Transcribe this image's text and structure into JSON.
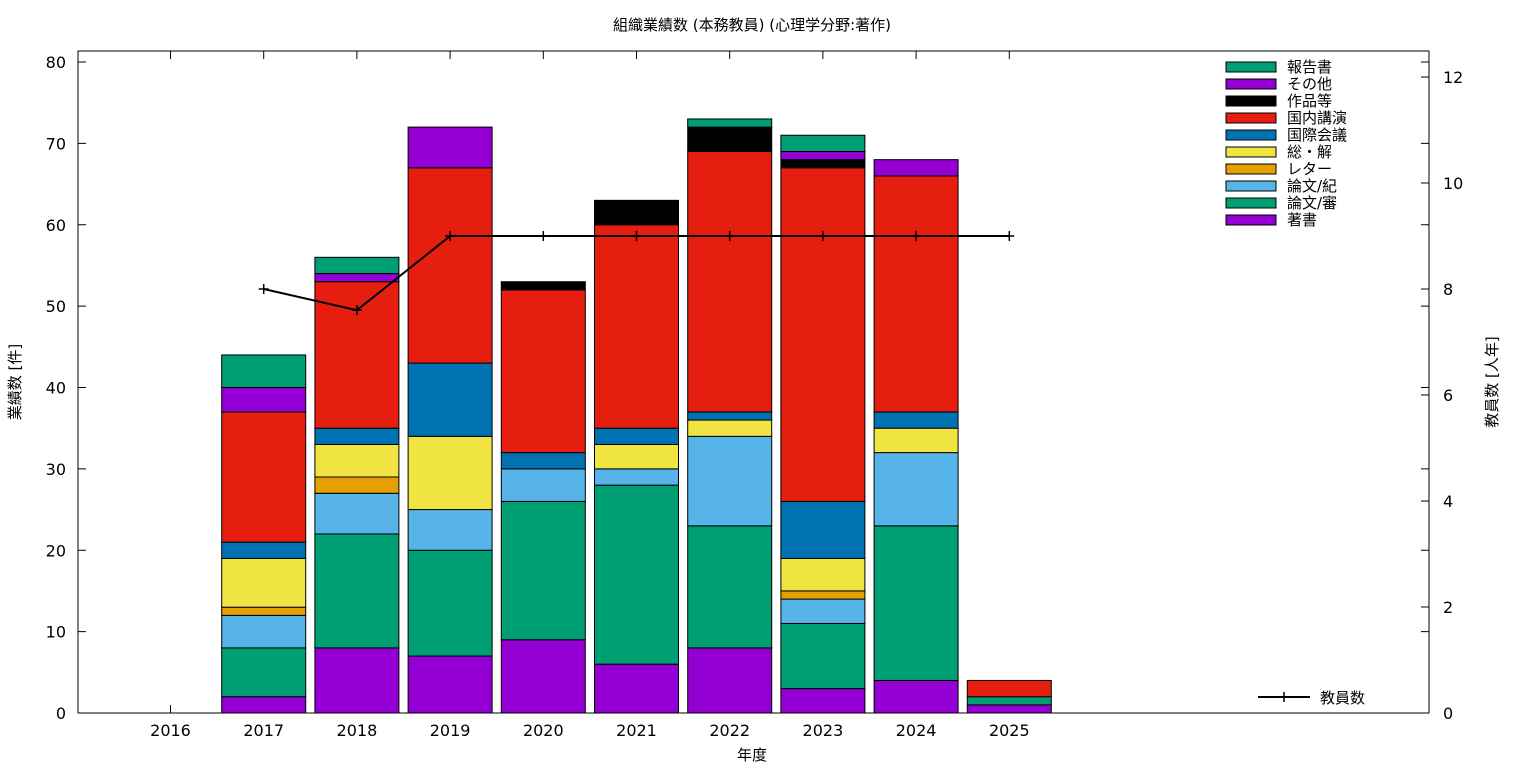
{
  "chart_data": {
    "type": "bar",
    "stacked": true,
    "title": "組織業績数 (本務教員) (心理学分野:著作)",
    "xlabel": "年度",
    "ylabel": "業績数 [件]",
    "y2label": "教員数 [人年]",
    "categories": [
      "2016",
      "2017",
      "2018",
      "2019",
      "2020",
      "2021",
      "2022",
      "2023",
      "2024",
      "2025"
    ],
    "ylim": [
      0,
      80
    ],
    "yticks": [
      0,
      10,
      20,
      30,
      40,
      50,
      60,
      70,
      80
    ],
    "y2lim": [
      0,
      12
    ],
    "y2ticks": [
      0,
      2,
      4,
      6,
      8,
      10,
      12
    ],
    "legend_position": "top-right",
    "series": [
      {
        "name": "著書",
        "color": "#9400d3",
        "values": [
          0,
          2,
          8,
          7,
          9,
          6,
          8,
          3,
          4,
          1
        ]
      },
      {
        "name": "論文/審",
        "color": "#009e73",
        "values": [
          0,
          6,
          14,
          13,
          17,
          22,
          15,
          8,
          19,
          1
        ]
      },
      {
        "name": "論文/紀",
        "color": "#56b4e9",
        "values": [
          0,
          4,
          5,
          5,
          4,
          2,
          11,
          3,
          9,
          0
        ]
      },
      {
        "name": "レター",
        "color": "#e69f00",
        "values": [
          0,
          1,
          2,
          0,
          0,
          0,
          0,
          1,
          0,
          0
        ]
      },
      {
        "name": "総・解",
        "color": "#f0e442",
        "values": [
          0,
          6,
          4,
          9,
          0,
          3,
          2,
          4,
          3,
          0
        ]
      },
      {
        "name": "国際会議",
        "color": "#0072b2",
        "values": [
          0,
          2,
          2,
          9,
          2,
          2,
          1,
          7,
          2,
          0
        ]
      },
      {
        "name": "国内講演",
        "color": "#e51e10",
        "values": [
          0,
          16,
          18,
          24,
          20,
          25,
          32,
          41,
          29,
          2
        ]
      },
      {
        "name": "作品等",
        "color": "#000000",
        "values": [
          0,
          0,
          0,
          0,
          1,
          3,
          3,
          1,
          0,
          0
        ]
      },
      {
        "name": "その他",
        "color": "#9400d3",
        "values": [
          0,
          3,
          1,
          5,
          0,
          0,
          0,
          1,
          2,
          0
        ]
      },
      {
        "name": "報告書",
        "color": "#009e73",
        "values": [
          0,
          4,
          2,
          0,
          0,
          0,
          1,
          2,
          0,
          0
        ]
      }
    ],
    "line_series": {
      "name": "教員数",
      "color": "#000000",
      "axis": "y2",
      "points": [
        {
          "x": "2017",
          "y": 8.0
        },
        {
          "x": "2018",
          "y": 7.6
        },
        {
          "x": "2019",
          "y": 9.0
        },
        {
          "x": "2020",
          "y": 9.0
        },
        {
          "x": "2021",
          "y": 9.0
        },
        {
          "x": "2022",
          "y": 9.0
        },
        {
          "x": "2023",
          "y": 9.0
        },
        {
          "x": "2024",
          "y": 9.0
        },
        {
          "x": "2025",
          "y": 9.0
        }
      ]
    }
  }
}
